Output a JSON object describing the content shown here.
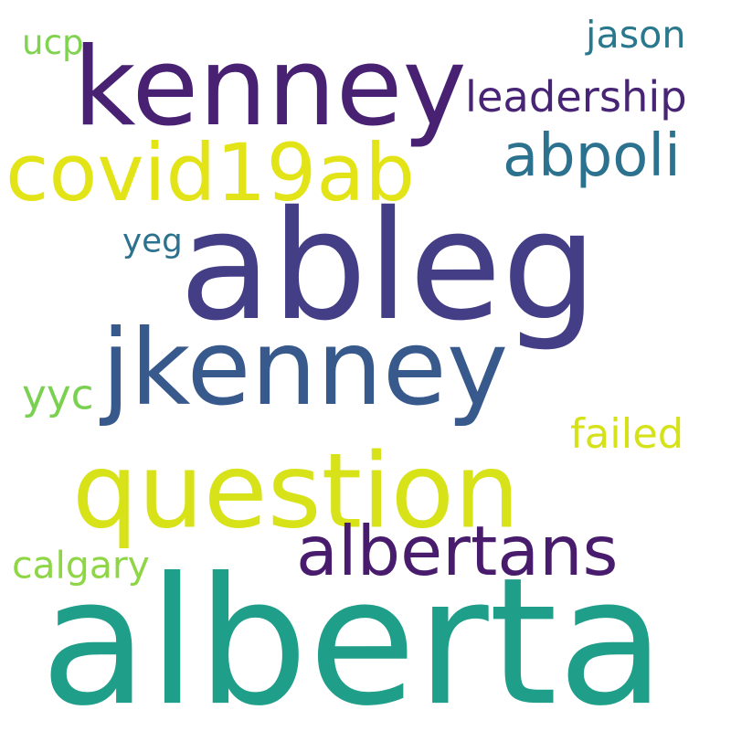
{
  "words": [
    {
      "text": "kenney",
      "color": "#482173"
    },
    {
      "text": "ableg",
      "color": "#433e85"
    },
    {
      "text": "alberta",
      "color": "#1f9e89"
    },
    {
      "text": "question",
      "color": "#d8e219"
    },
    {
      "text": "jkenney",
      "color": "#38598c"
    },
    {
      "text": "covid19ab",
      "color": "#e3e418"
    },
    {
      "text": "abpoli",
      "color": "#2c728e"
    },
    {
      "text": "albertans",
      "color": "#481b6d"
    },
    {
      "text": "leadership",
      "color": "#482475"
    },
    {
      "text": "jason",
      "color": "#2a788e"
    },
    {
      "text": "failed",
      "color": "#d5e21a"
    },
    {
      "text": "calgary",
      "color": "#8ed645"
    },
    {
      "text": "yyc",
      "color": "#7ad151"
    },
    {
      "text": "yeg",
      "color": "#2c728e"
    },
    {
      "text": "ucp",
      "color": "#7fd34e"
    }
  ]
}
